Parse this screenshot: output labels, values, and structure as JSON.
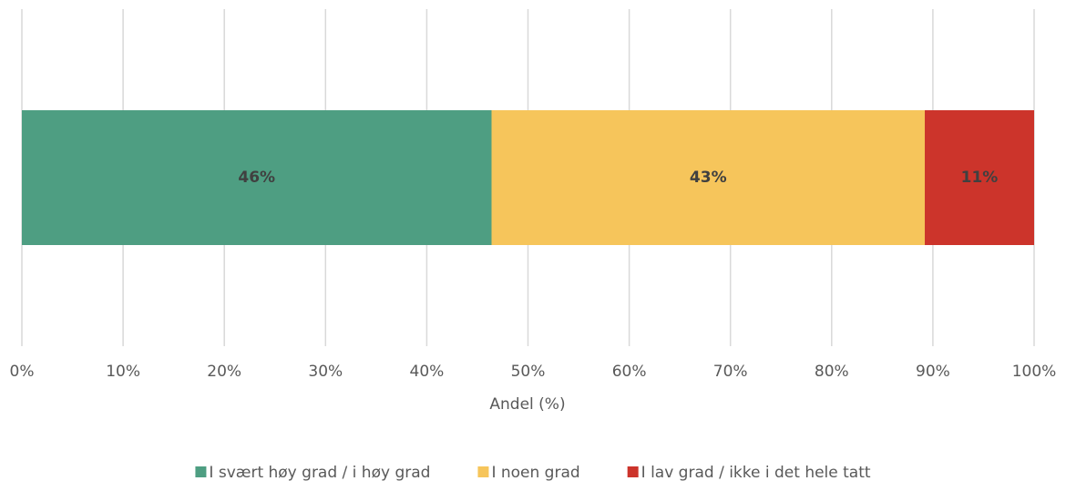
{
  "chart_data": {
    "type": "stacked-bar",
    "orientation": "horizontal",
    "x_axis_label": "Andel (%)",
    "categories": [
      null
    ],
    "series": [
      {
        "name": "I svært høy grad / i høy grad",
        "color": "#4e9e82",
        "values": [
          46.4
        ],
        "value_labels": [
          "46%"
        ]
      },
      {
        "name": "I noen grad",
        "color": "#f6c55b",
        "values": [
          42.8
        ],
        "value_labels": [
          "43%"
        ]
      },
      {
        "name": "I lav grad / ikke i det hele tatt",
        "color": "#cc342b",
        "values": [
          10.8
        ],
        "value_labels": [
          "11%"
        ]
      }
    ],
    "xlim": [
      0,
      100
    ],
    "xticks": [
      {
        "value": 0,
        "label": "0%"
      },
      {
        "value": 10,
        "label": "10%"
      },
      {
        "value": 20,
        "label": "20%"
      },
      {
        "value": 30,
        "label": "30%"
      },
      {
        "value": 40,
        "label": "40%"
      },
      {
        "value": 50,
        "label": "50%"
      },
      {
        "value": 60,
        "label": "60%"
      },
      {
        "value": 70,
        "label": "70%"
      },
      {
        "value": 80,
        "label": "80%"
      },
      {
        "value": 90,
        "label": "90%"
      },
      {
        "value": 100,
        "label": "100%"
      }
    ],
    "grid": true,
    "legend": "bottom"
  }
}
